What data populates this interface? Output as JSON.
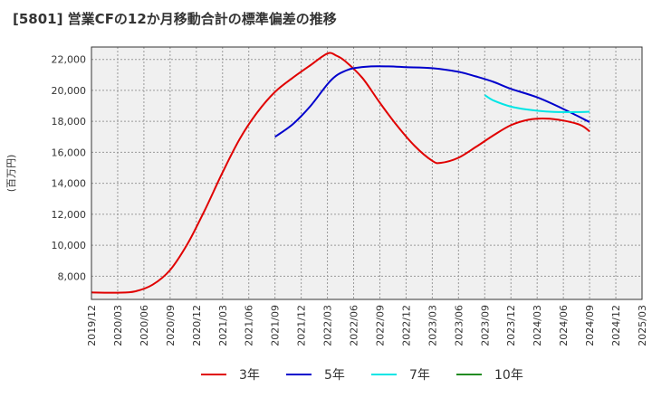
{
  "chart_data": {
    "type": "line",
    "title": "[5801]  営業CFの12か月移動合計の標準偏差の推移",
    "ylabel": "(百万円)",
    "xlabel": "",
    "x_ticks": [
      "2019/12",
      "2020/03",
      "2020/06",
      "2020/09",
      "2020/12",
      "2021/03",
      "2021/06",
      "2021/09",
      "2021/12",
      "2022/03",
      "2022/06",
      "2022/09",
      "2022/12",
      "2023/03",
      "2023/06",
      "2023/09",
      "2023/12",
      "2024/03",
      "2024/06",
      "2024/09",
      "2024/12",
      "2025/03"
    ],
    "y_ticks": [
      8000,
      10000,
      12000,
      14000,
      16000,
      18000,
      20000,
      22000
    ],
    "y_tick_labels": [
      "8,000",
      "10,000",
      "12,000",
      "14,000",
      "16,000",
      "18,000",
      "20,000",
      "22,000"
    ],
    "ylim": [
      6500,
      22800
    ],
    "grid": true,
    "legend_position": "bottom",
    "series": [
      {
        "name": "3年",
        "color": "#e00000",
        "values": [
          [
            "2019/12",
            6950
          ],
          [
            "2020/03",
            6930
          ],
          [
            "2020/05",
            7020
          ],
          [
            "2020/07",
            7450
          ],
          [
            "2020/09",
            8400
          ],
          [
            "2020/11",
            10100
          ],
          [
            "2021/01",
            12300
          ],
          [
            "2021/03",
            14700
          ],
          [
            "2021/05",
            16900
          ],
          [
            "2021/07",
            18600
          ],
          [
            "2021/09",
            19900
          ],
          [
            "2021/11",
            20800
          ],
          [
            "2022/01",
            21600
          ],
          [
            "2022/03",
            22380
          ],
          [
            "2022/04",
            22250
          ],
          [
            "2022/05",
            21900
          ],
          [
            "2022/07",
            20800
          ],
          [
            "2022/09",
            19200
          ],
          [
            "2022/11",
            17700
          ],
          [
            "2023/01",
            16400
          ],
          [
            "2023/03",
            15450
          ],
          [
            "2023/04",
            15320
          ],
          [
            "2023/06",
            15650
          ],
          [
            "2023/08",
            16350
          ],
          [
            "2023/10",
            17100
          ],
          [
            "2023/12",
            17750
          ],
          [
            "2024/02",
            18100
          ],
          [
            "2024/04",
            18180
          ],
          [
            "2024/06",
            18050
          ],
          [
            "2024/08",
            17750
          ],
          [
            "2024/09",
            17350
          ]
        ]
      },
      {
        "name": "5年",
        "color": "#0000cc",
        "values": [
          [
            "2021/09",
            17000
          ],
          [
            "2021/11",
            17800
          ],
          [
            "2022/01",
            18950
          ],
          [
            "2022/03",
            20400
          ],
          [
            "2022/04",
            20950
          ],
          [
            "2022/05",
            21250
          ],
          [
            "2022/06",
            21430
          ],
          [
            "2022/08",
            21550
          ],
          [
            "2022/10",
            21550
          ],
          [
            "2022/12",
            21500
          ],
          [
            "2023/03",
            21430
          ],
          [
            "2023/06",
            21200
          ],
          [
            "2023/08",
            20900
          ],
          [
            "2023/10",
            20550
          ],
          [
            "2023/12",
            20100
          ],
          [
            "2024/03",
            19550
          ],
          [
            "2024/06",
            18800
          ],
          [
            "2024/09",
            17950
          ]
        ]
      },
      {
        "name": "7年",
        "color": "#00e5e5",
        "values": [
          [
            "2023/09",
            19700
          ],
          [
            "2023/10",
            19350
          ],
          [
            "2023/12",
            18950
          ],
          [
            "2024/02",
            18750
          ],
          [
            "2024/04",
            18640
          ],
          [
            "2024/06",
            18600
          ],
          [
            "2024/08",
            18600
          ],
          [
            "2024/09",
            18620
          ]
        ]
      },
      {
        "name": "10年",
        "color": "#228b22",
        "values": []
      }
    ]
  }
}
